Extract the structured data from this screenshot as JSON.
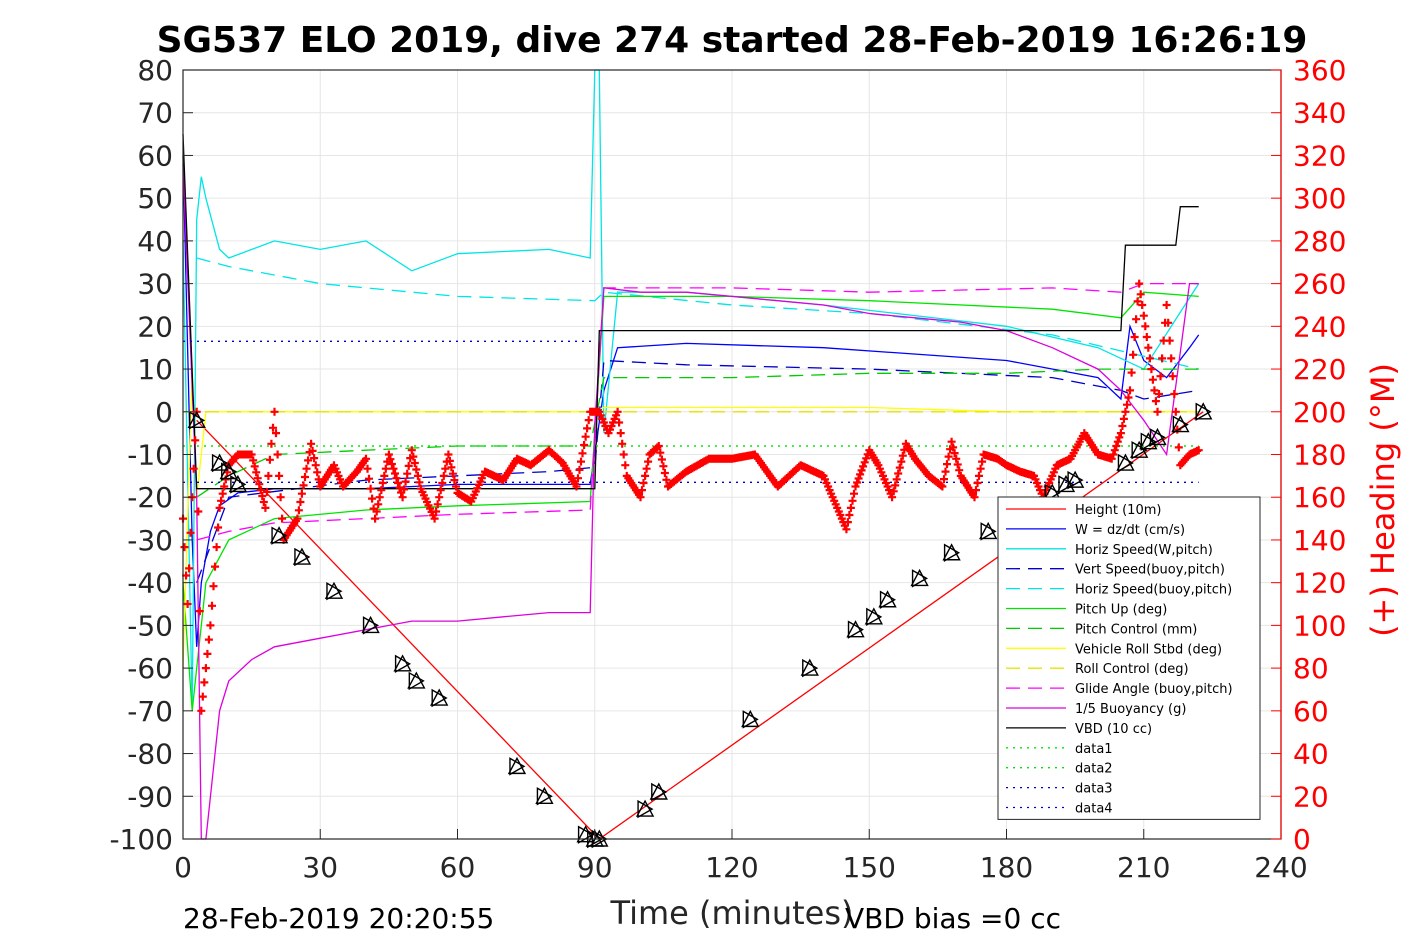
{
  "footer": {
    "timestamp": "28-Feb-2019 20:20:55",
    "vbd_bias": "VBD bias =0 cc"
  },
  "chart_data": {
    "type": "line",
    "title": "SG537 ELO 2019, dive 274 started 28-Feb-2019 16:26:19",
    "xlabel": "Time (minutes)",
    "ylabel": "",
    "y2label": "(+) Heading (°M)",
    "xlim": [
      0,
      240
    ],
    "ylim": [
      -100,
      80
    ],
    "y2lim": [
      0,
      360
    ],
    "x_ticks": [
      "0",
      "30",
      "60",
      "90",
      "120",
      "150",
      "180",
      "210",
      "240"
    ],
    "y_ticks": [
      "80",
      "70",
      "60",
      "50",
      "40",
      "30",
      "20",
      "10",
      "0",
      "-10",
      "-20",
      "-30",
      "-40",
      "-50",
      "-60",
      "-70",
      "-80",
      "-90",
      "-100"
    ],
    "y2_ticks": [
      "360",
      "340",
      "320",
      "300",
      "280",
      "260",
      "240",
      "220",
      "200",
      "180",
      "160",
      "140",
      "120",
      "100",
      "80",
      "60",
      "40",
      "20",
      "0"
    ],
    "grid": true,
    "legend_position": "bottom-right",
    "colors": {
      "y2_axis": "#ff0000",
      "heading_marker": "#ff0000"
    },
    "series": [
      {
        "name": "Height (10m)",
        "color": "#ff0000",
        "dash": "solid",
        "x": [
          3,
          91,
          223
        ],
        "y": [
          -2,
          -100,
          0
        ]
      },
      {
        "name": "W = dz/dt (cm/s)",
        "color": "#0000ff",
        "dash": "solid",
        "x": [
          0,
          2,
          3,
          4,
          6,
          8,
          12,
          20,
          40,
          60,
          80,
          89,
          92,
          95,
          110,
          140,
          180,
          200,
          205,
          207,
          210,
          215,
          220,
          222
        ],
        "y": [
          60,
          -30,
          -55,
          -40,
          -28,
          -22,
          -19,
          -18,
          -18,
          -17,
          -17,
          -17,
          5,
          15,
          16,
          15,
          12,
          8,
          3,
          20,
          12,
          8,
          15,
          18
        ]
      },
      {
        "name": "Horiz Speed(W,pitch)",
        "color": "#00e5e5",
        "dash": "solid",
        "x": [
          0,
          2,
          3,
          4,
          5,
          8,
          10,
          20,
          30,
          40,
          50,
          60,
          80,
          89,
          90,
          91,
          92,
          95,
          110,
          140,
          180,
          200,
          210,
          222
        ],
        "y": [
          40,
          -70,
          45,
          55,
          50,
          38,
          36,
          40,
          38,
          40,
          33,
          37,
          38,
          36,
          80,
          80,
          -5,
          28,
          28,
          25,
          20,
          15,
          10,
          30
        ]
      },
      {
        "name": "Vert Speed(buoy,pitch)",
        "color": "#0000cc",
        "dash": "long",
        "x": [
          3,
          10,
          40,
          80,
          90,
          92,
          110,
          150,
          190,
          205,
          210,
          222
        ],
        "y": [
          -40,
          -20,
          -16,
          -14,
          -13,
          12,
          11,
          10,
          8,
          5,
          3,
          5
        ]
      },
      {
        "name": "Horiz Speed(buoy,pitch)",
        "color": "#00e5e5",
        "dash": "long",
        "x": [
          3,
          10,
          30,
          60,
          90,
          92,
          120,
          150,
          190,
          210,
          222
        ],
        "y": [
          36,
          34,
          30,
          27,
          26,
          28,
          25,
          23,
          18,
          13,
          10
        ]
      },
      {
        "name": "Pitch Up (deg)",
        "color": "#00e500",
        "dash": "solid",
        "x": [
          0,
          2,
          3,
          5,
          10,
          20,
          40,
          60,
          89,
          92,
          120,
          150,
          190,
          205,
          210,
          222
        ],
        "y": [
          -40,
          -70,
          -60,
          -40,
          -30,
          -25,
          -23,
          -22,
          -21,
          27,
          27,
          26,
          24,
          22,
          28,
          27
        ]
      },
      {
        "name": "Pitch Control (mm)",
        "color": "#00cc00",
        "dash": "long",
        "x": [
          3,
          10,
          20,
          40,
          60,
          89,
          92,
          120,
          150,
          180,
          200,
          222
        ],
        "y": [
          -20,
          -15,
          -10,
          -9,
          -8,
          -8,
          8,
          8,
          9,
          9,
          10,
          10
        ]
      },
      {
        "name": "Vehicle Roll Stbd (deg)",
        "color": "#ffff00",
        "dash": "solid",
        "x": [
          0,
          2,
          3,
          5,
          8,
          40,
          80,
          89,
          92,
          120,
          150,
          180,
          200,
          210,
          222
        ],
        "y": [
          -60,
          10,
          -20,
          0,
          0,
          0,
          0,
          0,
          1,
          1,
          1,
          0,
          0,
          0,
          0
        ]
      },
      {
        "name": "Roll Control (deg)",
        "color": "#e5e500",
        "dash": "long",
        "x": [
          0,
          20,
          40,
          60,
          80,
          90,
          120,
          150,
          180,
          222
        ],
        "y": [
          0,
          0,
          0,
          0,
          0,
          0,
          0,
          0,
          0,
          0
        ]
      },
      {
        "name": "Glide Angle (buoy,pitch)",
        "color": "#ff00ff",
        "dash": "long",
        "x": [
          3,
          10,
          20,
          40,
          60,
          89,
          92,
          120,
          150,
          190,
          205,
          210,
          222
        ],
        "y": [
          -30,
          -28,
          -26,
          -25,
          -24,
          -23,
          29,
          29,
          28,
          29,
          28,
          30,
          30
        ]
      },
      {
        "name": "1/5 Buoyancy (g)",
        "color": "#dd00dd",
        "dash": "solid",
        "x": [
          0,
          3,
          4,
          5,
          8,
          10,
          15,
          20,
          30,
          40,
          50,
          60,
          70,
          80,
          89,
          90,
          92,
          100,
          110,
          120,
          130,
          140,
          150,
          160,
          170,
          180,
          190,
          200,
          205,
          210,
          215,
          220,
          222
        ],
        "y": [
          58,
          -20,
          -100,
          -100,
          -70,
          -63,
          -58,
          -55,
          -53,
          -51,
          -49,
          -49,
          -48,
          -47,
          -47,
          -3,
          29,
          28,
          28,
          27,
          26,
          25,
          23,
          22,
          21,
          19,
          15,
          10,
          5,
          -2,
          -10,
          30,
          30
        ]
      },
      {
        "name": "VBD (10 cc)",
        "color": "#000000",
        "dash": "solid",
        "x": [
          0,
          3,
          90,
          91,
          93,
          180,
          205,
          206,
          217,
          218,
          222
        ],
        "y": [
          65,
          -18,
          -18,
          19,
          19,
          19,
          19,
          39,
          39,
          48,
          48
        ]
      },
      {
        "name": "data1",
        "color": "#00e500",
        "dash": "dot",
        "x": [
          0,
          222
        ],
        "y": [
          -8,
          -8
        ]
      },
      {
        "name": "data2",
        "color": "#00e500",
        "dash": "dot",
        "x": [
          0,
          222
        ],
        "y": [
          -8,
          -8
        ]
      },
      {
        "name": "data3",
        "color": "#0000cc",
        "dash": "dot",
        "x": [
          0,
          90
        ],
        "y": [
          16.5,
          16.5
        ]
      },
      {
        "name": "data4",
        "color": "#0000cc",
        "dash": "dot",
        "x": [
          0,
          222
        ],
        "y": [
          -16.5,
          -16.5
        ]
      }
    ],
    "heading": {
      "axis": "right",
      "x": [
        0,
        1,
        2,
        3,
        4,
        6,
        8,
        10,
        12,
        15,
        18,
        20,
        22,
        25,
        28,
        30,
        33,
        35,
        38,
        40,
        42,
        45,
        48,
        50,
        52,
        55,
        58,
        60,
        63,
        66,
        70,
        73,
        76,
        80,
        83,
        86,
        89,
        91,
        93,
        95,
        97,
        100,
        102,
        104,
        106,
        110,
        115,
        120,
        125,
        130,
        135,
        140,
        145,
        147,
        150,
        152,
        155,
        158,
        160,
        163,
        166,
        168,
        170,
        173,
        175,
        178,
        180,
        183,
        186,
        188,
        191,
        194,
        197,
        200,
        203,
        205,
        207,
        209,
        211,
        213,
        215,
        218,
        220,
        222
      ],
      "y": [
        150,
        110,
        160,
        200,
        60,
        100,
        155,
        175,
        180,
        180,
        155,
        200,
        140,
        150,
        185,
        165,
        175,
        165,
        172,
        178,
        150,
        180,
        160,
        182,
        164,
        150,
        180,
        162,
        158,
        172,
        168,
        178,
        175,
        182,
        176,
        165,
        200,
        200,
        190,
        200,
        170,
        160,
        180,
        184,
        165,
        172,
        178,
        178,
        180,
        165,
        175,
        170,
        145,
        165,
        182,
        175,
        160,
        185,
        178,
        170,
        165,
        186,
        170,
        160,
        180,
        178,
        175,
        172,
        170,
        160,
        175,
        178,
        190,
        180,
        178,
        190,
        210,
        260,
        230,
        200,
        250,
        175,
        180,
        182
      ]
    },
    "markers": {
      "symbol": "triangle",
      "x": [
        3,
        8,
        10,
        12,
        21,
        26,
        33,
        41,
        48,
        51,
        56,
        73,
        79,
        88,
        90,
        91,
        101,
        104,
        124,
        137,
        147,
        151,
        154,
        161,
        168,
        176,
        190,
        193,
        195,
        206,
        209,
        211,
        213,
        218,
        223
      ],
      "y": [
        -2,
        -12,
        -14,
        -17,
        -29,
        -34,
        -42,
        -50,
        -59,
        -63,
        -67,
        -83,
        -90,
        -99,
        -100,
        -100,
        -93,
        -89,
        -72,
        -60,
        -51,
        -48,
        -44,
        -39,
        -33,
        -28,
        -19,
        -17,
        -16,
        -12,
        -9,
        -7,
        -6,
        -3,
        0
      ]
    }
  }
}
